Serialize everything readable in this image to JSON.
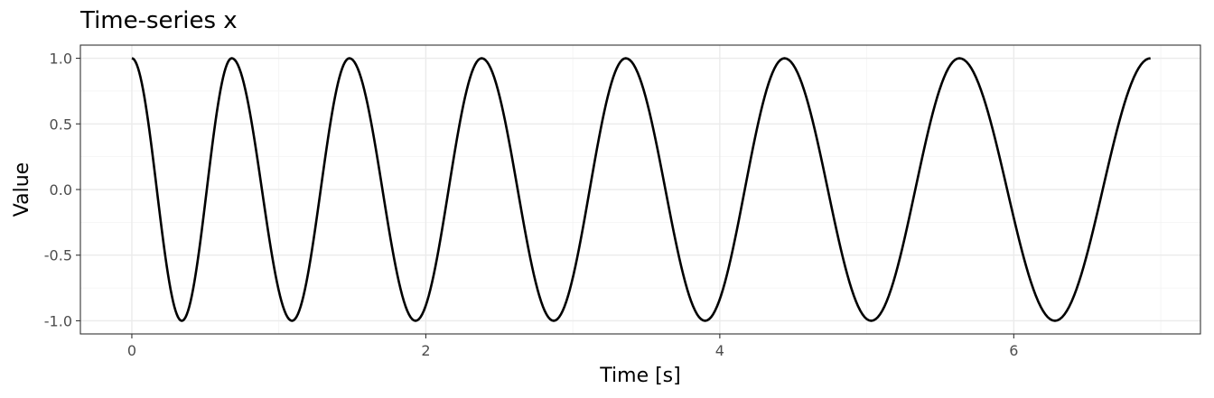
{
  "chart_data": {
    "type": "line",
    "title": "Time-series x",
    "xlabel": "Time [s]",
    "ylabel": "Value",
    "xlim": [
      -0.35,
      7.27
    ],
    "ylim": [
      -1.1,
      1.1
    ],
    "x_ticks": [
      0,
      2,
      4,
      6
    ],
    "x_tick_labels": [
      "0",
      "2",
      "4",
      "6"
    ],
    "y_ticks": [
      1.0,
      0.5,
      0.0,
      -0.5,
      -1.0
    ],
    "y_tick_labels": [
      "1.0",
      "0.5",
      "0.0",
      "-0.5",
      "-1.0"
    ],
    "grid": true,
    "series": [
      {
        "color": "#000000",
        "x": [
          0,
          0.34,
          0.68,
          1.09,
          1.48,
          1.93,
          2.38,
          2.87,
          3.36,
          3.9,
          4.44,
          5.03,
          5.63,
          6.28,
          6.93
        ],
        "y": [
          1.0,
          -1.0,
          1.0,
          -1.0,
          1.0,
          -1.0,
          1.0,
          -1.0,
          1.0,
          -1.0,
          1.0,
          -1.0,
          1.0,
          -1.0,
          1.0
        ]
      }
    ]
  }
}
